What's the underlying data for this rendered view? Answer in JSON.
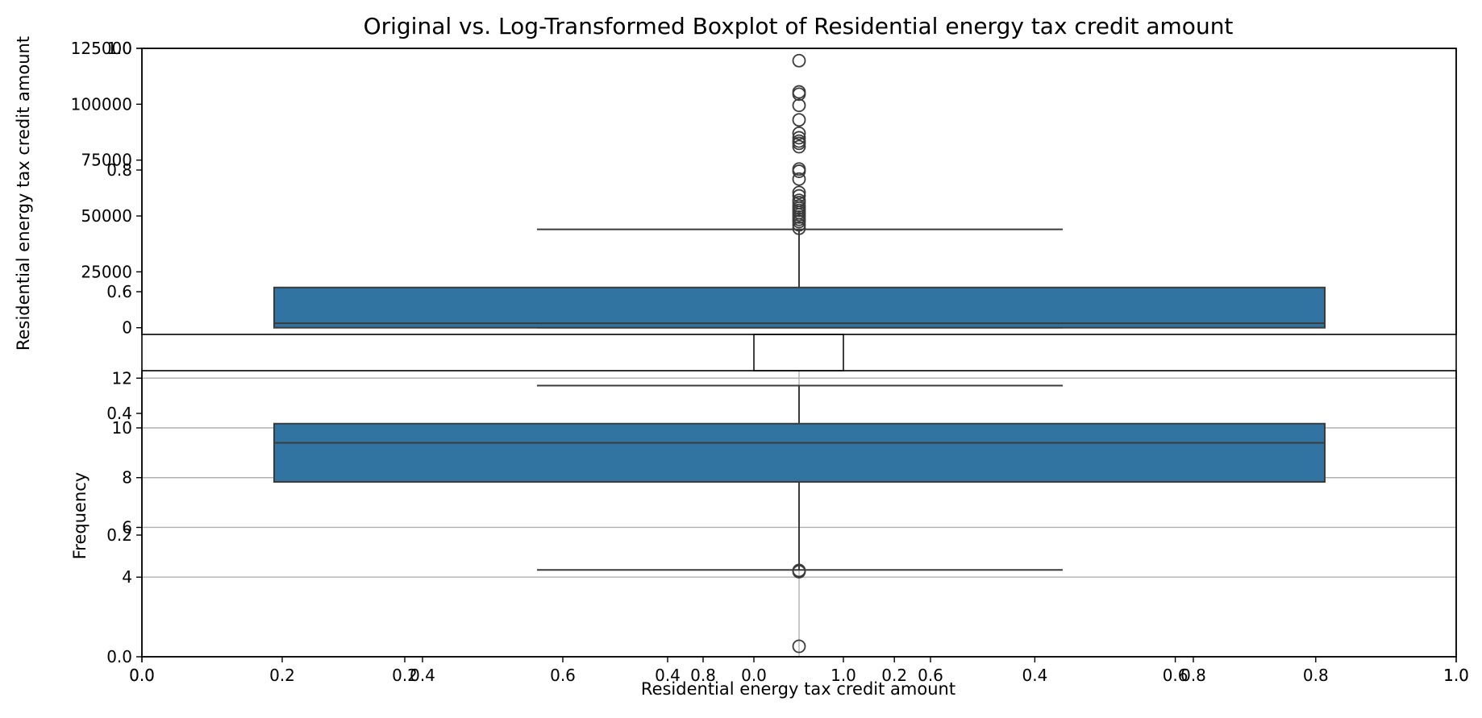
{
  "title": "Original vs. Log-Transformed Boxplot of Residential energy tax credit amount",
  "chart_data": [
    {
      "type": "boxplot",
      "panel": "original",
      "ylabel": "Residential energy tax credit amount",
      "xlabel": "",
      "ylim": [
        -3000,
        125000
      ],
      "yticks": [
        0,
        25000,
        50000,
        75000,
        100000,
        125000
      ],
      "ytick_labels": [
        "0",
        "25000",
        "50000",
        "75000",
        "100000",
        "125000"
      ],
      "grid": false,
      "color": "#3274a1",
      "box": {
        "q1": 0,
        "median": 2000,
        "q3": 18000,
        "whisker_low": 0,
        "whisker_high": 44000
      },
      "outliers": [
        44500,
        46000,
        47500,
        48500,
        49500,
        50500,
        51500,
        52500,
        53500,
        54500,
        56000,
        57000,
        59000,
        60500,
        66500,
        70000,
        71000,
        81000,
        82500,
        83500,
        85000,
        87000,
        93000,
        99500,
        104500,
        105500,
        119500
      ]
    },
    {
      "type": "boxplot",
      "panel": "log-transformed",
      "ylabel": "Frequency",
      "xlabel": "Residential energy tax credit amount",
      "ylim": [
        0.8,
        12.3
      ],
      "yticks": [
        4,
        6,
        8,
        10,
        12
      ],
      "ytick_labels": [
        "4",
        "6",
        "8",
        "10",
        "12"
      ],
      "grid": true,
      "color": "#3274a1",
      "box": {
        "q1": 7.83,
        "median": 9.4,
        "q3": 10.17,
        "whisker_low": 4.29,
        "whisker_high": 11.7
      },
      "outliers": [
        4.22,
        4.27,
        1.22
      ]
    },
    {
      "type": "frame",
      "panel": "background-axes",
      "xlim": [
        0,
        1
      ],
      "ylim": [
        0,
        1
      ],
      "xticks": [
        "0.0",
        "0.2",
        "0.4",
        "0.6",
        "0.8",
        "1.0"
      ],
      "yticks": [
        "0.0",
        "0.2",
        "0.4",
        "0.6",
        "0.8",
        "1.0"
      ]
    },
    {
      "type": "frame",
      "panel": "upper-inset-axes",
      "xticks": [
        "0.0",
        "0.2",
        "0.4",
        "0.6",
        "0.8",
        "1.0"
      ],
      "xlim": [
        0,
        1
      ]
    }
  ]
}
